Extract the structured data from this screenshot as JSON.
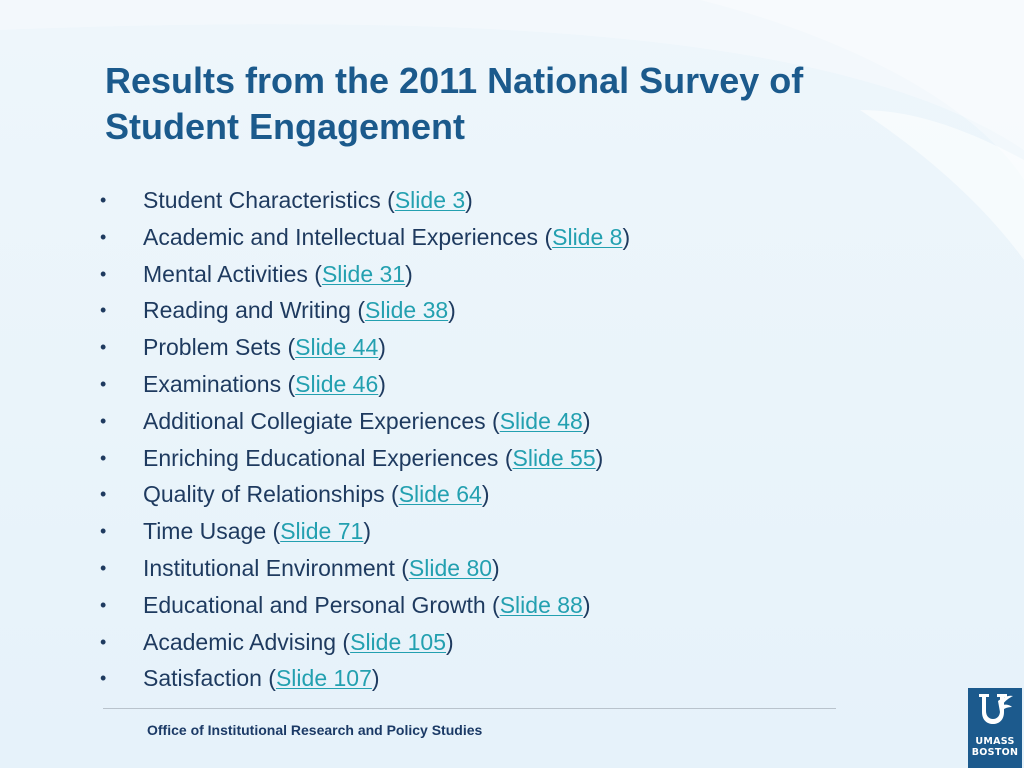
{
  "slide": {
    "title": "Results from the 2011 National Survey of Student Engagement",
    "bullet_glyph": "•",
    "items": [
      {
        "label": "Student Characteristics",
        "link": "Slide 3"
      },
      {
        "label": "Academic and Intellectual Experiences",
        "link": "Slide 8"
      },
      {
        "label": "Mental Activities",
        "link": "Slide 31"
      },
      {
        "label": "Reading and Writing",
        "link": "Slide 38"
      },
      {
        "label": "Problem Sets",
        "link": "Slide 44"
      },
      {
        "label": "Examinations",
        "link": "Slide 46"
      },
      {
        "label": "Additional Collegiate Experiences",
        "link": "Slide 48"
      },
      {
        "label": "Enriching Educational Experiences",
        "link": "Slide 55"
      },
      {
        "label": "Quality of Relationships",
        "link": "Slide 64"
      },
      {
        "label": "Time Usage",
        "link": "Slide 71"
      },
      {
        "label": "Institutional Environment",
        "link": "Slide 80"
      },
      {
        "label": "Educational and Personal Growth",
        "link": "Slide 88"
      },
      {
        "label": "Academic Advising",
        "link": "Slide 105"
      },
      {
        "label": "Satisfaction",
        "link": "Slide 107"
      }
    ],
    "footer": "Office of Institutional Research and Policy Studies",
    "logo": {
      "line1": "UMASS",
      "line2": "BOSTON",
      "icon": "umass-boston-logo-mark"
    }
  },
  "colors": {
    "title": "#1b5a8c",
    "body_text": "#1e3a5f",
    "link": "#23a0b0",
    "logo_bg": "#1c5a8d",
    "background": "#e8f3fa"
  }
}
